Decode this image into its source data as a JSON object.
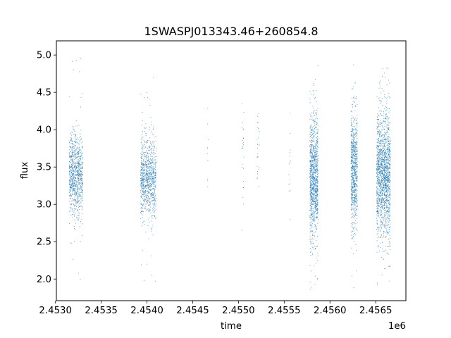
{
  "chart_data": {
    "type": "scatter",
    "title": "1SWASPJ013343.46+260854.8",
    "xlabel": "time",
    "ylabel": "flux",
    "x_offset_label": "1e6",
    "xlim": [
      2.45301,
      2.45683
    ],
    "ylim": [
      1.71,
      5.19
    ],
    "x_ticks": [
      2.453,
      2.4535,
      2.454,
      2.4545,
      2.455,
      2.4555,
      2.456,
      2.4565
    ],
    "x_tick_labels": [
      "2.4530",
      "2.4535",
      "2.4540",
      "2.4545",
      "2.4550",
      "2.4555",
      "2.4560",
      "2.4565"
    ],
    "y_ticks": [
      2.0,
      2.5,
      3.0,
      3.5,
      4.0,
      4.5,
      5.0
    ],
    "y_tick_labels": [
      "2.0",
      "2.5",
      "3.0",
      "3.5",
      "4.0",
      "4.5",
      "5.0"
    ],
    "grid": false,
    "legend": "none",
    "colors": {
      "points": "#1f77b4"
    },
    "series": [
      {
        "clusters": [
          {
            "x_range": [
              2.45315,
              2.4533
            ],
            "center": 3.4,
            "spread": 0.28,
            "ymin": 1.88,
            "ymax": 4.96,
            "weight": 900
          },
          {
            "x_range": [
              2.45393,
              2.4541
            ],
            "center": 3.35,
            "spread": 0.28,
            "ymin": 1.92,
            "ymax": 4.93,
            "weight": 950
          },
          {
            "x_range": [
              2.45466,
              2.45467
            ],
            "center": 3.7,
            "spread": 0.4,
            "ymin": 3.1,
            "ymax": 4.5,
            "weight": 10
          },
          {
            "x_range": [
              2.45503,
              2.45506
            ],
            "center": 3.6,
            "spread": 0.35,
            "ymin": 2.55,
            "ymax": 4.45,
            "weight": 25
          },
          {
            "x_range": [
              2.4552,
              2.45523
            ],
            "center": 3.65,
            "spread": 0.4,
            "ymin": 2.3,
            "ymax": 4.25,
            "weight": 25
          },
          {
            "x_range": [
              2.45555,
              2.45557
            ],
            "center": 3.6,
            "spread": 0.35,
            "ymin": 2.65,
            "ymax": 4.5,
            "weight": 15
          },
          {
            "x_range": [
              2.45578,
              2.45587
            ],
            "center": 3.35,
            "spread": 0.42,
            "ymin": 1.85,
            "ymax": 5.02,
            "weight": 1100
          },
          {
            "x_range": [
              2.45623,
              2.4563
            ],
            "center": 3.45,
            "spread": 0.38,
            "ymin": 1.88,
            "ymax": 5.02,
            "weight": 800
          },
          {
            "x_range": [
              2.45651,
              2.45666
            ],
            "center": 3.4,
            "spread": 0.42,
            "ymin": 1.85,
            "ymax": 4.87,
            "weight": 1700
          }
        ]
      }
    ]
  }
}
